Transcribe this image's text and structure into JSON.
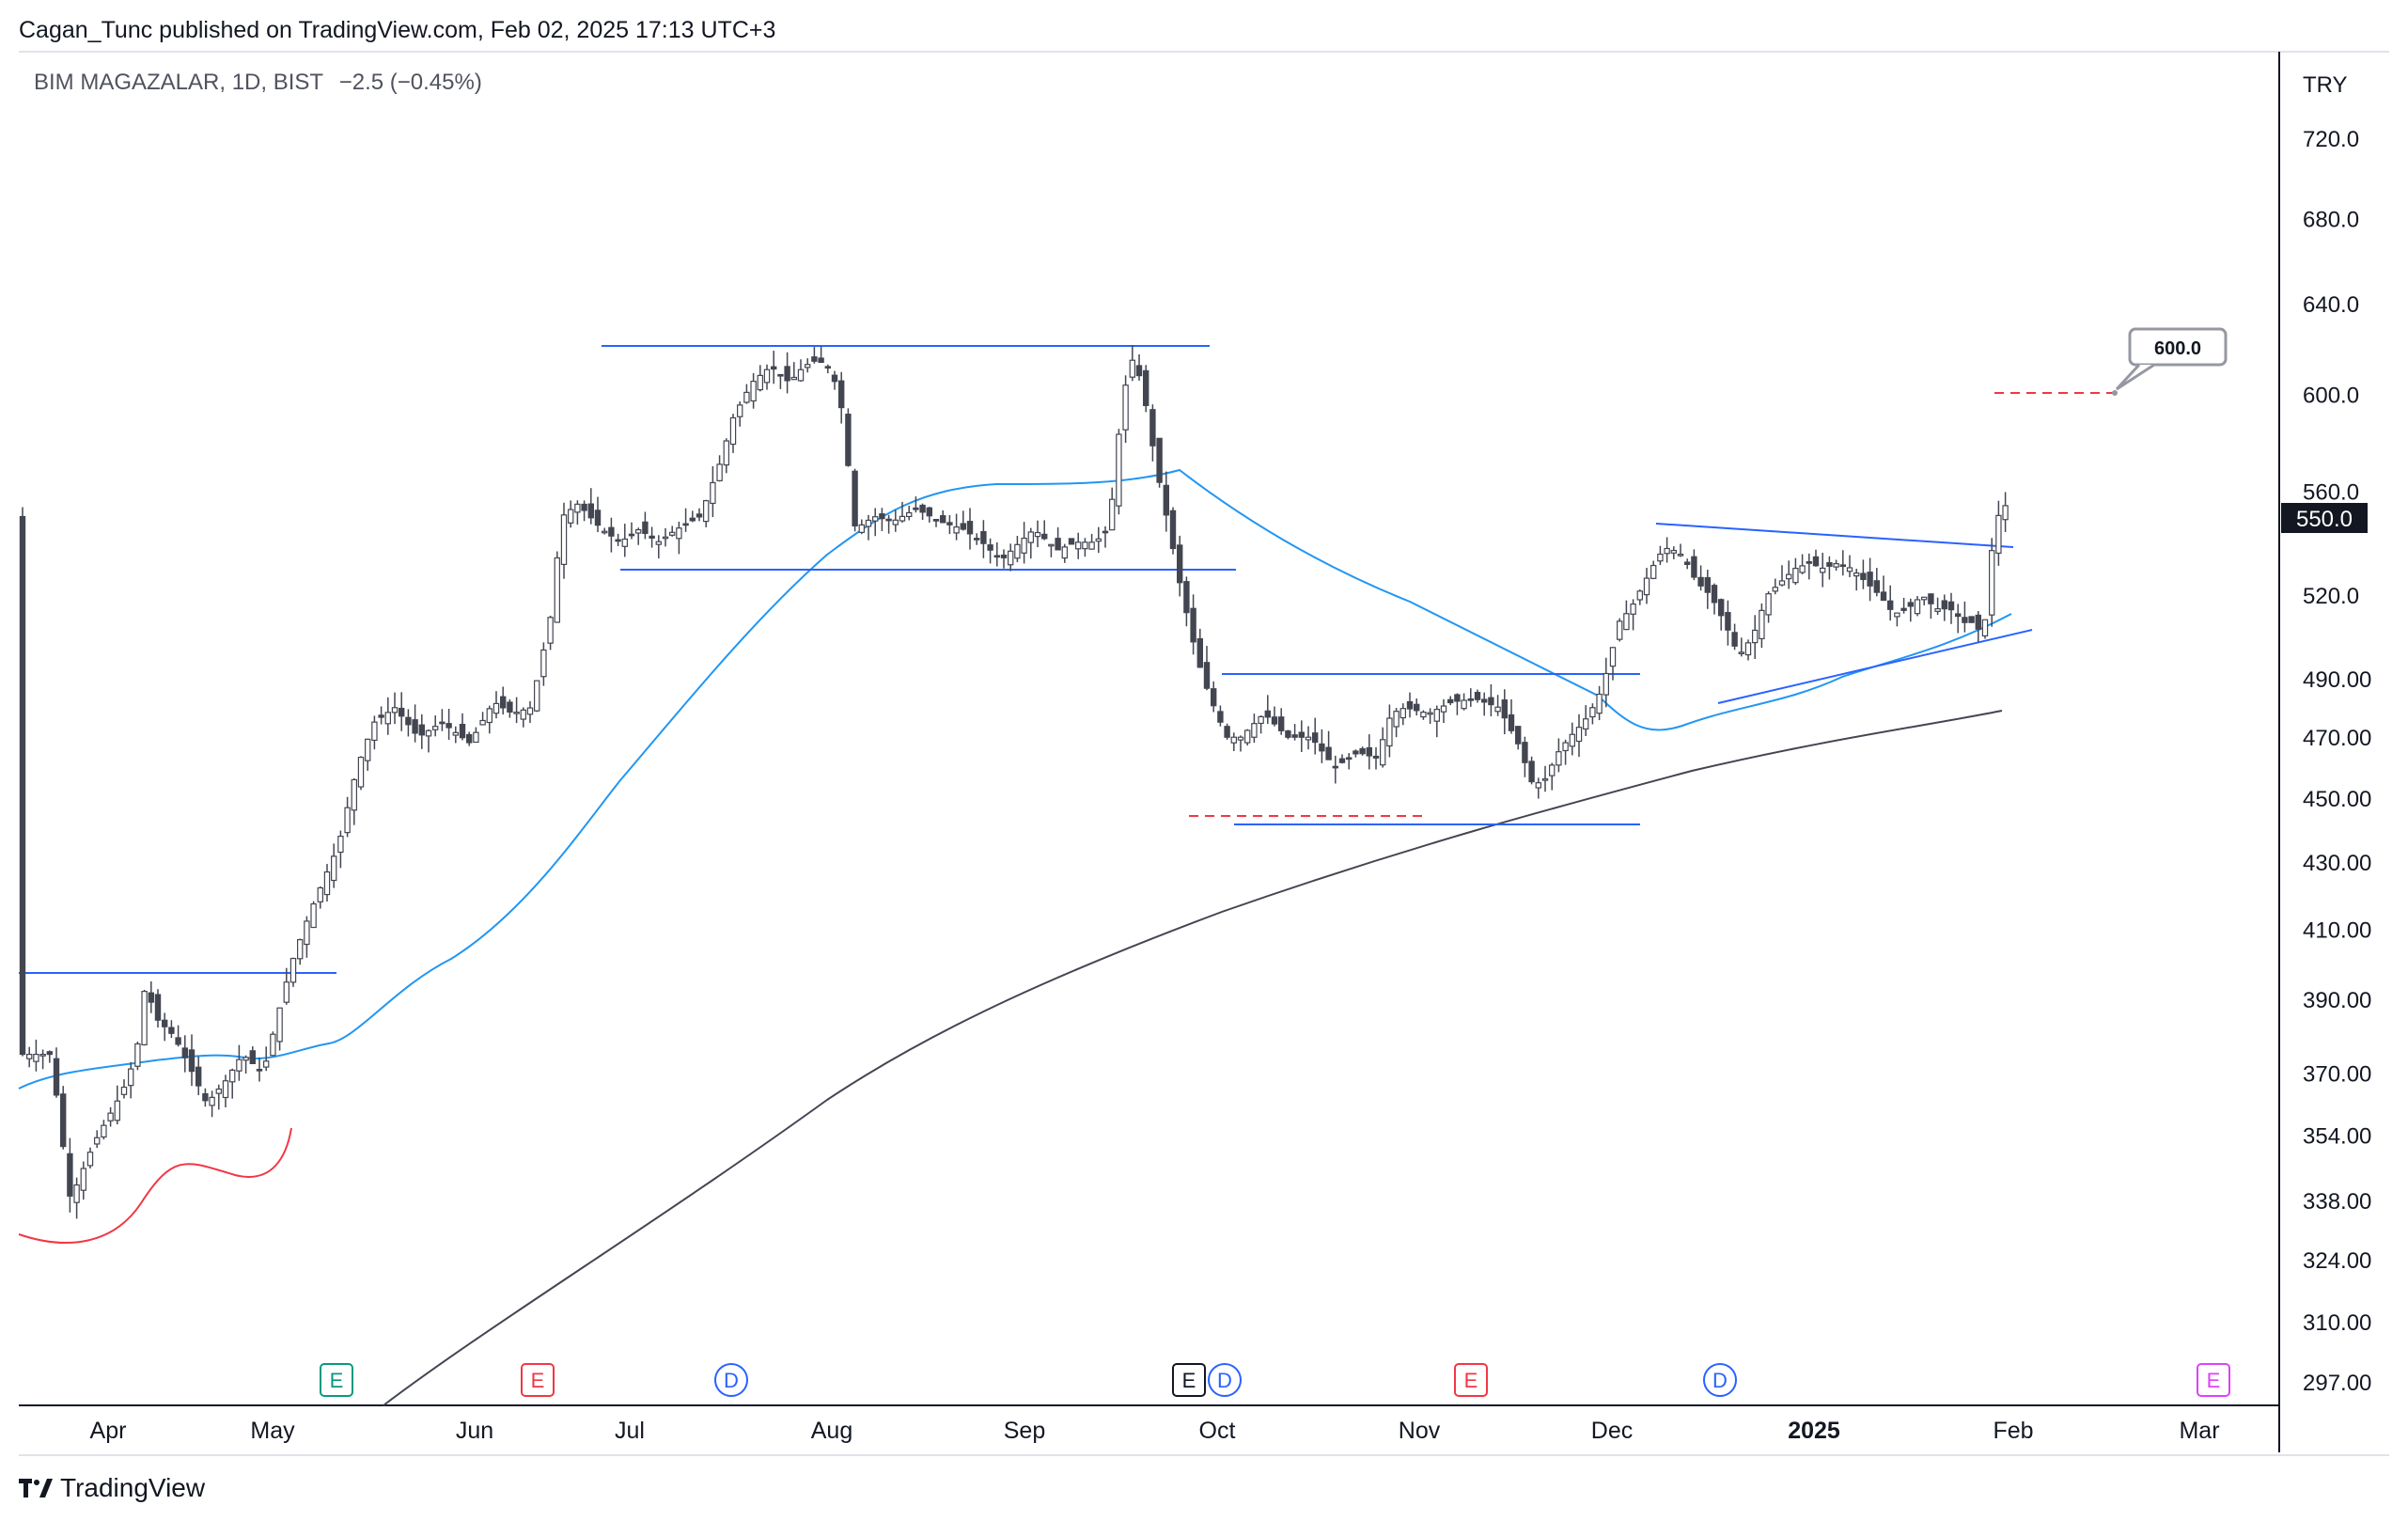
{
  "header": {
    "published": "Cagan_Tunc published on TradingView.com, Feb 02, 2025 17:13 UTC+3",
    "symbol": "BIM MAGAZALAR, 1D, BIST",
    "change": "−2.5 (−0.45%)"
  },
  "footer": {
    "brand": "TradingView"
  },
  "chart_data": {
    "type": "candlestick",
    "currency": "TRY",
    "last_price_label": "550.0",
    "target_label": "600.0",
    "y_scale": "log",
    "y_ticks": [
      "720.0",
      "680.0",
      "640.0",
      "600.0",
      "560.0",
      "520.0",
      "490.00",
      "470.00",
      "450.00",
      "430.00",
      "410.00",
      "390.00",
      "370.00",
      "354.00",
      "338.00",
      "324.00",
      "310.00",
      "297.00"
    ],
    "x_ticks": [
      "Apr",
      "May",
      "Jun",
      "Jul",
      "Aug",
      "Sep",
      "Oct",
      "Nov",
      "Dec",
      "2025",
      "Feb",
      "Mar"
    ],
    "events": [
      {
        "label": "E",
        "month": "May",
        "color": "#089981"
      },
      {
        "label": "E",
        "month": "Jun",
        "color": "#f23645"
      },
      {
        "label": "D",
        "month": "Jul",
        "color": "#2962ff"
      },
      {
        "label": "E",
        "month": "Sep",
        "color": "#131722"
      },
      {
        "label": "D",
        "month": "Sep",
        "color": "#2962ff"
      },
      {
        "label": "E",
        "month": "Nov",
        "color": "#f23645"
      },
      {
        "label": "D",
        "month": "Dec",
        "color": "#2962ff"
      },
      {
        "label": "E",
        "month": "Feb",
        "color": "#e040fb"
      }
    ],
    "colors": {
      "up": "#ffffff",
      "down": "#434651",
      "wick": "#434651",
      "trendline": "#2962ff",
      "ma50": "#2196f3",
      "ma200": "#434651",
      "target": "#f23645",
      "text_axis": "#131722"
    }
  }
}
